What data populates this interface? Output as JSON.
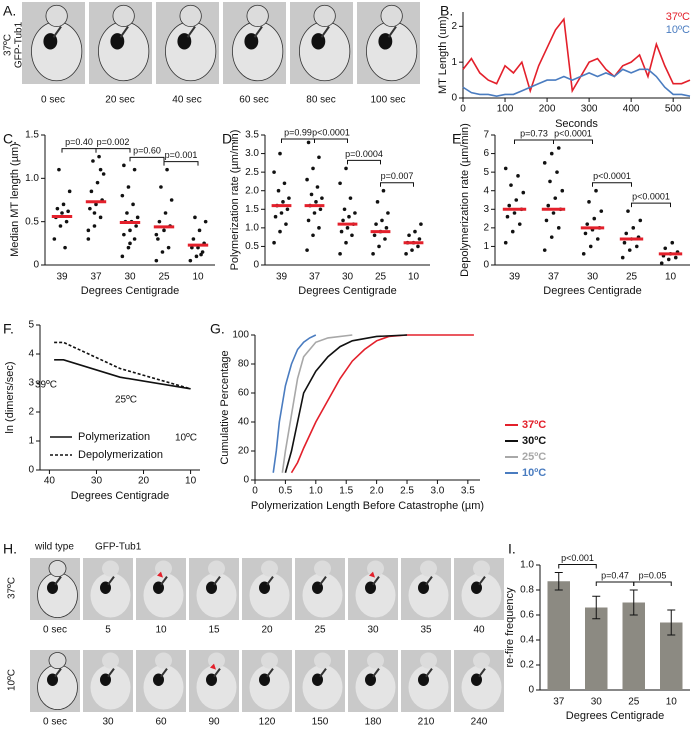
{
  "chart_data": [
    {
      "type": "line",
      "panel": "B.",
      "ylabel": "MT Length (um)",
      "xlabel": "Seconds",
      "x": [
        0,
        20,
        40,
        60,
        80,
        100,
        120,
        140,
        160,
        180,
        200,
        220,
        240,
        260,
        280,
        300,
        320,
        340,
        360,
        380,
        400,
        420,
        440,
        460,
        480,
        500,
        520,
        540
      ],
      "xlim": [
        0,
        540
      ],
      "xticks": [
        0,
        100,
        200,
        300,
        400,
        500
      ],
      "ylim": [
        0,
        2.4
      ],
      "yticks": [
        0,
        1,
        2
      ],
      "series": [
        {
          "name": "37ºC",
          "color": "#e3202b",
          "values": [
            0.8,
            1.1,
            0.7,
            0.5,
            0.4,
            0.9,
            0.7,
            1.0,
            0.2,
            0.9,
            1.4,
            1.9,
            2.2,
            0.2,
            0.6,
            1.0,
            1.1,
            0.8,
            0.6,
            0.9,
            1.0,
            1.2,
            0.6,
            1.5,
            0.9,
            0.4,
            0.4,
            0.5
          ]
        },
        {
          "name": "10ºC",
          "color": "#4a7cc0",
          "values": [
            0.3,
            0.15,
            0.1,
            0.1,
            0.05,
            0.1,
            0.1,
            0.2,
            0.3,
            0.4,
            0.5,
            0.5,
            0.6,
            0.5,
            0.6,
            0.7,
            0.6,
            0.7,
            0.6,
            0.8,
            0.7,
            0.8,
            0.8,
            0.6,
            0.3,
            0.1,
            0.1,
            0.05
          ]
        }
      ]
    },
    {
      "type": "dot",
      "panel": "C.",
      "ylabel": "Median MT length (µm)",
      "xlabel": "Degrees Centigrade",
      "categories": [
        "39",
        "37",
        "30",
        "25",
        "10"
      ],
      "ylim": [
        0,
        1.5
      ],
      "yticks": [
        0,
        0.5,
        {
          "value": 1,
          "label": "1.0"
        },
        1.5
      ],
      "color": "#111111",
      "mean_color": "#e3202b",
      "points": [
        [
          0.3,
          0.45,
          0.5,
          0.55,
          0.6,
          0.62,
          0.65,
          0.7,
          0.85,
          1.1,
          0.2
        ],
        [
          0.3,
          0.45,
          0.55,
          0.65,
          0.7,
          0.75,
          0.85,
          0.95,
          1.05,
          1.2,
          1.25,
          0.4,
          0.6,
          1.1
        ],
        [
          0.1,
          0.2,
          0.3,
          0.35,
          0.4,
          0.45,
          0.5,
          0.5,
          0.55,
          0.6,
          0.7,
          0.8,
          0.9,
          1.1,
          1.15,
          0.25
        ],
        [
          0.05,
          0.15,
          0.2,
          0.3,
          0.4,
          0.45,
          0.5,
          0.6,
          0.75,
          0.9,
          1.1,
          0.35
        ],
        [
          0.05,
          0.1,
          0.15,
          0.2,
          0.2,
          0.25,
          0.3,
          0.4,
          0.5,
          0.55,
          0.12
        ]
      ],
      "means": [
        0.56,
        0.73,
        0.49,
        0.44,
        0.23
      ],
      "p_values": [
        "p=0.40",
        "p=0.002",
        "p=0.60",
        "p=0.001"
      ]
    },
    {
      "type": "dot",
      "panel": "D.",
      "ylabel": "Polymerization rate (µm/min)",
      "xlabel": "Degrees Centigrade",
      "categories": [
        "39",
        "37",
        "30",
        "25",
        "10"
      ],
      "ylim": [
        0,
        3.5
      ],
      "yticks": [
        0,
        0.5,
        {
          "value": 1,
          "label": "1.0"
        },
        1.5,
        {
          "value": 2,
          "label": "2.0"
        },
        2.5,
        {
          "value": 3,
          "label": "3.0"
        },
        3.5
      ],
      "color": "#111111",
      "mean_color": "#e3202b",
      "points": [
        [
          0.6,
          0.9,
          1.1,
          1.3,
          1.4,
          1.5,
          1.6,
          1.7,
          1.8,
          2.0,
          2.2,
          2.5,
          3.0
        ],
        [
          0.4,
          0.8,
          1.0,
          1.2,
          1.4,
          1.5,
          1.6,
          1.7,
          1.8,
          1.9,
          2.1,
          2.3,
          2.6,
          2.9,
          3.3
        ],
        [
          0.3,
          0.6,
          0.8,
          0.9,
          1.0,
          1.1,
          1.2,
          1.3,
          1.4,
          1.5,
          1.8,
          2.2,
          2.6
        ],
        [
          0.3,
          0.5,
          0.7,
          0.8,
          0.9,
          1.0,
          1.1,
          1.2,
          1.4,
          1.7,
          2.0
        ],
        [
          0.3,
          0.4,
          0.5,
          0.6,
          0.6,
          0.7,
          0.8,
          0.9,
          1.1
        ]
      ],
      "means": [
        1.6,
        1.6,
        1.1,
        0.9,
        0.6
      ],
      "p_values": [
        "p=0.99",
        "p<0.0001",
        "p=0.0004",
        "p=0.007"
      ]
    },
    {
      "type": "dot",
      "panel": "E.",
      "ylabel": "Depolymerization rate (µm/min)",
      "xlabel": "Degrees Centigrade",
      "categories": [
        "39",
        "37",
        "30",
        "25",
        "10"
      ],
      "ylim": [
        0,
        7
      ],
      "yticks": [
        0,
        1,
        2,
        3,
        4,
        5,
        6,
        7
      ],
      "color": "#111111",
      "mean_color": "#e3202b",
      "points": [
        [
          1.2,
          1.8,
          2.2,
          2.6,
          2.8,
          3.0,
          3.2,
          3.5,
          3.9,
          4.3,
          4.8,
          5.2
        ],
        [
          0.8,
          1.5,
          2.0,
          2.4,
          2.8,
          3.0,
          3.2,
          3.6,
          4.0,
          4.5,
          5.0,
          5.5,
          6.0,
          6.3
        ],
        [
          0.6,
          1.0,
          1.4,
          1.7,
          1.9,
          2.0,
          2.2,
          2.5,
          2.9,
          3.4,
          4.0
        ],
        [
          0.4,
          0.8,
          1.0,
          1.2,
          1.4,
          1.5,
          1.7,
          2.0,
          2.4,
          2.9
        ],
        [
          0.1,
          0.3,
          0.4,
          0.5,
          0.6,
          0.7,
          0.9,
          1.2
        ]
      ],
      "means": [
        3.0,
        3.0,
        2.0,
        1.4,
        0.6
      ],
      "p_values": [
        "p=0.73",
        "p<0.0001",
        "p<0.0001",
        "p<0.0001"
      ]
    },
    {
      "type": "line",
      "panel": "F.",
      "ylabel": "ln (dimers/sec)",
      "xlabel": "Degrees Centigrade",
      "xlim": [
        42,
        8
      ],
      "xticks": [
        40,
        30,
        20,
        10
      ],
      "ylim": [
        0,
        5
      ],
      "yticks": [
        0,
        1,
        2,
        3,
        4,
        5
      ],
      "annotations": [
        "39ºC",
        "25ºC",
        "10ºC"
      ],
      "series": [
        {
          "name": "Polymerization",
          "color": "#111111",
          "dashed": false,
          "x": [
            39,
            37,
            25,
            10
          ],
          "values": [
            3.8,
            3.8,
            3.2,
            2.8
          ]
        },
        {
          "name": "Depolymerization",
          "color": "#111111",
          "dashed": true,
          "x": [
            39,
            37,
            25,
            10
          ],
          "values": [
            4.4,
            4.4,
            3.5,
            2.8
          ]
        }
      ]
    },
    {
      "type": "line",
      "panel": "G.",
      "ylabel": "Cumulative Percentage",
      "xlabel": "Polymerization Length Before Catastrophe (µm)",
      "xlim": [
        0,
        3.7
      ],
      "xticks": [
        0,
        0.5,
        {
          "value": 1,
          "label": "1.0"
        },
        1.5,
        {
          "value": 2,
          "label": "2.0"
        },
        2.5,
        {
          "value": 3,
          "label": "3.0"
        },
        3.5
      ],
      "ylim": [
        0,
        100
      ],
      "yticks": [
        0,
        20,
        40,
        60,
        80,
        100
      ],
      "series": [
        {
          "name": "37ºC",
          "color": "#e3202b",
          "x": [
            0.6,
            0.7,
            0.8,
            1.0,
            1.2,
            1.4,
            1.6,
            1.8,
            2.0,
            2.2,
            2.5,
            3.6
          ],
          "values": [
            5,
            12,
            22,
            40,
            55,
            70,
            82,
            90,
            96,
            99,
            100,
            100
          ]
        },
        {
          "name": "30ºC",
          "color": "#111111",
          "x": [
            0.5,
            0.6,
            0.7,
            0.8,
            1.0,
            1.2,
            1.4,
            1.6,
            2.0,
            2.5
          ],
          "values": [
            5,
            20,
            40,
            60,
            75,
            85,
            92,
            96,
            99,
            100
          ]
        },
        {
          "name": "25ºC",
          "color": "#a8a8a8",
          "x": [
            0.45,
            0.5,
            0.6,
            0.7,
            0.8,
            1.0,
            1.2,
            1.6
          ],
          "values": [
            5,
            20,
            45,
            70,
            85,
            95,
            98,
            100
          ]
        },
        {
          "name": "10ºC",
          "color": "#4a7cc0",
          "x": [
            0.3,
            0.35,
            0.4,
            0.5,
            0.6,
            0.7,
            0.8,
            0.9,
            1.0
          ],
          "values": [
            5,
            20,
            40,
            65,
            80,
            90,
            95,
            98,
            100
          ]
        }
      ]
    },
    {
      "type": "bar",
      "panel": "I.",
      "ylabel": "re-fire frequency",
      "xlabel": "Degrees Centigrade",
      "categories": [
        "37",
        "30",
        "25",
        "10"
      ],
      "values": [
        0.87,
        0.66,
        0.7,
        0.54
      ],
      "errors": [
        0.07,
        0.09,
        0.1,
        0.1
      ],
      "color": "#8c8a82",
      "ylim": [
        0,
        1
      ],
      "yticks": [
        0,
        0.2,
        0.4,
        0.6,
        0.8,
        {
          "value": 1,
          "label": "1.0"
        }
      ],
      "p_values": [
        "p<0.001",
        "p=0.47",
        "p=0.05"
      ]
    }
  ],
  "image_panels": [
    {
      "panel": "A.",
      "side_labels": [
        "37ºC",
        "GFP-Tub1"
      ],
      "rows": [
        {
          "frames": [
            "0 sec",
            "20 sec",
            "40 sec",
            "60 sec",
            "80 sec",
            "100 sec"
          ]
        }
      ]
    },
    {
      "panel": "H.",
      "headers": [
        "wild type",
        "GFP-Tub1"
      ],
      "rows": [
        {
          "label": "37ºC",
          "frames": [
            "0 sec",
            "5",
            "10",
            "15",
            "20",
            "25",
            "30",
            "35",
            "40"
          ]
        },
        {
          "label": "10ºC",
          "frames": [
            "0 sec",
            "30",
            "60",
            "90",
            "120",
            "150",
            "180",
            "210",
            "240"
          ]
        }
      ]
    }
  ]
}
